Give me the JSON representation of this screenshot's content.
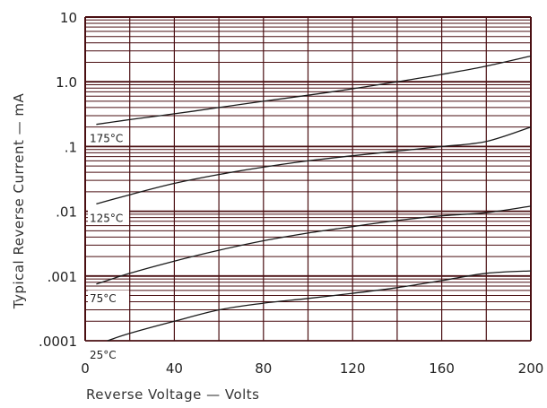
{
  "chart_data": {
    "type": "line",
    "xlabel": "Reverse Voltage — Volts",
    "ylabel": "Typical Reverse Current — mA",
    "xlim": [
      0,
      200
    ],
    "ylim": [
      0.0001,
      10
    ],
    "y_scale": "log",
    "grid": true,
    "x_ticks": [
      "0",
      "40",
      "80",
      "120",
      "160",
      "200"
    ],
    "y_ticks": [
      ".0001",
      ".001",
      ".01",
      ".1",
      "1.0",
      "10"
    ],
    "colors": {
      "grid": "#4a0f12",
      "curve": "#1a1a1a",
      "text": "#222222"
    },
    "series": [
      {
        "name": "175°C",
        "x": [
          5,
          20,
          40,
          60,
          80,
          100,
          120,
          140,
          160,
          180,
          200
        ],
        "y": [
          0.22,
          0.26,
          0.32,
          0.4,
          0.5,
          0.62,
          0.78,
          1.0,
          1.3,
          1.75,
          2.5
        ]
      },
      {
        "name": "125°C",
        "x": [
          5,
          20,
          40,
          60,
          80,
          100,
          120,
          140,
          160,
          180,
          200
        ],
        "y": [
          0.013,
          0.018,
          0.027,
          0.037,
          0.048,
          0.06,
          0.072,
          0.085,
          0.1,
          0.12,
          0.2
        ]
      },
      {
        "name": "75°C",
        "x": [
          5,
          20,
          40,
          60,
          80,
          100,
          120,
          140,
          160,
          180,
          200
        ],
        "y": [
          0.00075,
          0.0011,
          0.0017,
          0.0025,
          0.0035,
          0.0046,
          0.0058,
          0.0072,
          0.0085,
          0.0095,
          0.012
        ]
      },
      {
        "name": "25°C",
        "x": [
          10,
          20,
          40,
          60,
          80,
          100,
          120,
          140,
          160,
          180,
          200
        ],
        "y": [
          0.0001,
          0.00013,
          0.0002,
          0.0003,
          0.00038,
          0.00045,
          0.00054,
          0.00066,
          0.00085,
          0.0011,
          0.0012
        ]
      }
    ]
  }
}
